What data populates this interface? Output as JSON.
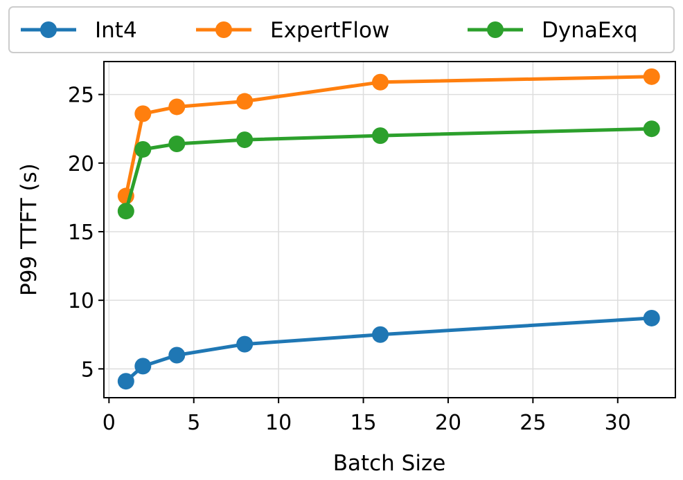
{
  "chart_data": {
    "type": "line",
    "title": "",
    "xlabel": "Batch Size",
    "ylabel": "P99 TTFT (s)",
    "xlim": [
      -0.3,
      33.4
    ],
    "ylim": [
      2.9,
      27.4
    ],
    "xticks": [
      0,
      5,
      10,
      15,
      20,
      25,
      30
    ],
    "yticks": [
      5,
      10,
      15,
      20,
      25
    ],
    "grid": true,
    "legend_position": "top",
    "series": [
      {
        "name": "Int4",
        "color": "#1f77b4",
        "x": [
          1,
          2,
          4,
          8,
          16,
          32
        ],
        "y": [
          4.1,
          5.2,
          6.0,
          6.8,
          7.5,
          8.7
        ]
      },
      {
        "name": "ExpertFlow",
        "color": "#ff7f0e",
        "x": [
          1,
          2,
          4,
          8,
          16,
          32
        ],
        "y": [
          17.6,
          23.6,
          24.1,
          24.5,
          25.9,
          26.3
        ]
      },
      {
        "name": "DynaExq",
        "color": "#2ca02c",
        "x": [
          1,
          2,
          4,
          8,
          16,
          32
        ],
        "y": [
          16.5,
          21.0,
          21.4,
          21.7,
          22.0,
          22.5
        ]
      }
    ]
  }
}
